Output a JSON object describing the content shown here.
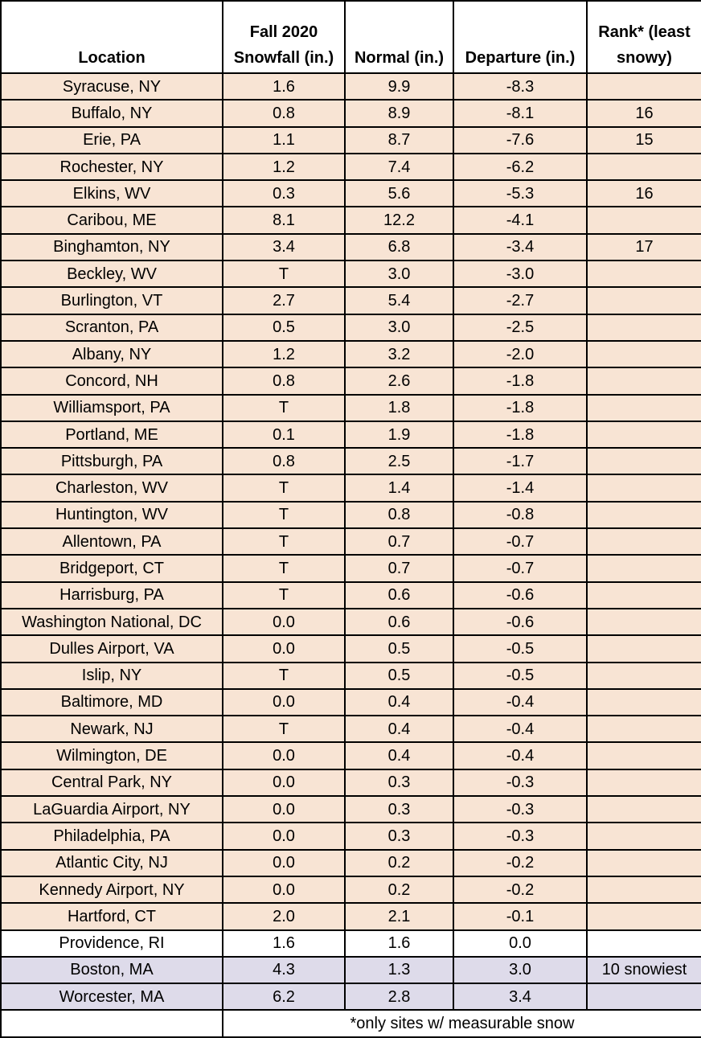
{
  "table": {
    "headers": {
      "location": "Location",
      "snowfall_line1": "Fall 2020",
      "snowfall_line2": "Snowfall (in.)",
      "normal": "Normal (in.)",
      "departure": "Departure (in.)",
      "rank_line1": "Rank* (least",
      "rank_line2": "snowy)"
    },
    "rows": [
      {
        "location": "Syracuse, NY",
        "snowfall": "1.6",
        "normal": "9.9",
        "departure": "-8.3",
        "rank": "",
        "shade": "below"
      },
      {
        "location": "Buffalo, NY",
        "snowfall": "0.8",
        "normal": "8.9",
        "departure": "-8.1",
        "rank": "16",
        "shade": "below"
      },
      {
        "location": "Erie, PA",
        "snowfall": "1.1",
        "normal": "8.7",
        "departure": "-7.6",
        "rank": "15",
        "shade": "below"
      },
      {
        "location": "Rochester, NY",
        "snowfall": "1.2",
        "normal": "7.4",
        "departure": "-6.2",
        "rank": "",
        "shade": "below"
      },
      {
        "location": "Elkins, WV",
        "snowfall": "0.3",
        "normal": "5.6",
        "departure": "-5.3",
        "rank": "16",
        "shade": "below"
      },
      {
        "location": "Caribou, ME",
        "snowfall": "8.1",
        "normal": "12.2",
        "departure": "-4.1",
        "rank": "",
        "shade": "below"
      },
      {
        "location": "Binghamton, NY",
        "snowfall": "3.4",
        "normal": "6.8",
        "departure": "-3.4",
        "rank": "17",
        "shade": "below"
      },
      {
        "location": "Beckley, WV",
        "snowfall": "T",
        "normal": "3.0",
        "departure": "-3.0",
        "rank": "",
        "shade": "below"
      },
      {
        "location": "Burlington, VT",
        "snowfall": "2.7",
        "normal": "5.4",
        "departure": "-2.7",
        "rank": "",
        "shade": "below"
      },
      {
        "location": "Scranton, PA",
        "snowfall": "0.5",
        "normal": "3.0",
        "departure": "-2.5",
        "rank": "",
        "shade": "below"
      },
      {
        "location": "Albany, NY",
        "snowfall": "1.2",
        "normal": "3.2",
        "departure": "-2.0",
        "rank": "",
        "shade": "below"
      },
      {
        "location": "Concord, NH",
        "snowfall": "0.8",
        "normal": "2.6",
        "departure": "-1.8",
        "rank": "",
        "shade": "below"
      },
      {
        "location": "Williamsport, PA",
        "snowfall": "T",
        "normal": "1.8",
        "departure": "-1.8",
        "rank": "",
        "shade": "below"
      },
      {
        "location": "Portland, ME",
        "snowfall": "0.1",
        "normal": "1.9",
        "departure": "-1.8",
        "rank": "",
        "shade": "below"
      },
      {
        "location": "Pittsburgh, PA",
        "snowfall": "0.8",
        "normal": "2.5",
        "departure": "-1.7",
        "rank": "",
        "shade": "below"
      },
      {
        "location": "Charleston, WV",
        "snowfall": "T",
        "normal": "1.4",
        "departure": "-1.4",
        "rank": "",
        "shade": "below"
      },
      {
        "location": "Huntington, WV",
        "snowfall": "T",
        "normal": "0.8",
        "departure": "-0.8",
        "rank": "",
        "shade": "below"
      },
      {
        "location": "Allentown, PA",
        "snowfall": "T",
        "normal": "0.7",
        "departure": "-0.7",
        "rank": "",
        "shade": "below"
      },
      {
        "location": "Bridgeport, CT",
        "snowfall": "T",
        "normal": "0.7",
        "departure": "-0.7",
        "rank": "",
        "shade": "below"
      },
      {
        "location": "Harrisburg, PA",
        "snowfall": "T",
        "normal": "0.6",
        "departure": "-0.6",
        "rank": "",
        "shade": "below"
      },
      {
        "location": "Washington National, DC",
        "snowfall": "0.0",
        "normal": "0.6",
        "departure": "-0.6",
        "rank": "",
        "shade": "below"
      },
      {
        "location": "Dulles Airport, VA",
        "snowfall": "0.0",
        "normal": "0.5",
        "departure": "-0.5",
        "rank": "",
        "shade": "below"
      },
      {
        "location": "Islip, NY",
        "snowfall": "T",
        "normal": "0.5",
        "departure": "-0.5",
        "rank": "",
        "shade": "below"
      },
      {
        "location": "Baltimore, MD",
        "snowfall": "0.0",
        "normal": "0.4",
        "departure": "-0.4",
        "rank": "",
        "shade": "below"
      },
      {
        "location": "Newark, NJ",
        "snowfall": "T",
        "normal": "0.4",
        "departure": "-0.4",
        "rank": "",
        "shade": "below"
      },
      {
        "location": "Wilmington, DE",
        "snowfall": "0.0",
        "normal": "0.4",
        "departure": "-0.4",
        "rank": "",
        "shade": "below"
      },
      {
        "location": "Central Park, NY",
        "snowfall": "0.0",
        "normal": "0.3",
        "departure": "-0.3",
        "rank": "",
        "shade": "below"
      },
      {
        "location": "LaGuardia Airport, NY",
        "snowfall": "0.0",
        "normal": "0.3",
        "departure": "-0.3",
        "rank": "",
        "shade": "below"
      },
      {
        "location": "Philadelphia, PA",
        "snowfall": "0.0",
        "normal": "0.3",
        "departure": "-0.3",
        "rank": "",
        "shade": "below"
      },
      {
        "location": "Atlantic City, NJ",
        "snowfall": "0.0",
        "normal": "0.2",
        "departure": "-0.2",
        "rank": "",
        "shade": "below"
      },
      {
        "location": "Kennedy Airport, NY",
        "snowfall": "0.0",
        "normal": "0.2",
        "departure": "-0.2",
        "rank": "",
        "shade": "below"
      },
      {
        "location": "Hartford, CT",
        "snowfall": "2.0",
        "normal": "2.1",
        "departure": "-0.1",
        "rank": "",
        "shade": "below"
      },
      {
        "location": "Providence, RI",
        "snowfall": "1.6",
        "normal": "1.6",
        "departure": "0.0",
        "rank": "",
        "shade": "normal"
      },
      {
        "location": "Boston, MA",
        "snowfall": "4.3",
        "normal": "1.3",
        "departure": "3.0",
        "rank": "10 snowiest",
        "shade": "above"
      },
      {
        "location": "Worcester, MA",
        "snowfall": "6.2",
        "normal": "2.8",
        "departure": "3.4",
        "rank": "",
        "shade": "above"
      }
    ],
    "footnote": "*only sites w/ measurable snow"
  },
  "colors": {
    "below_normal": "#f8e4d4",
    "near_normal": "#ffffff",
    "above_normal": "#dedbea",
    "border": "#000000"
  }
}
